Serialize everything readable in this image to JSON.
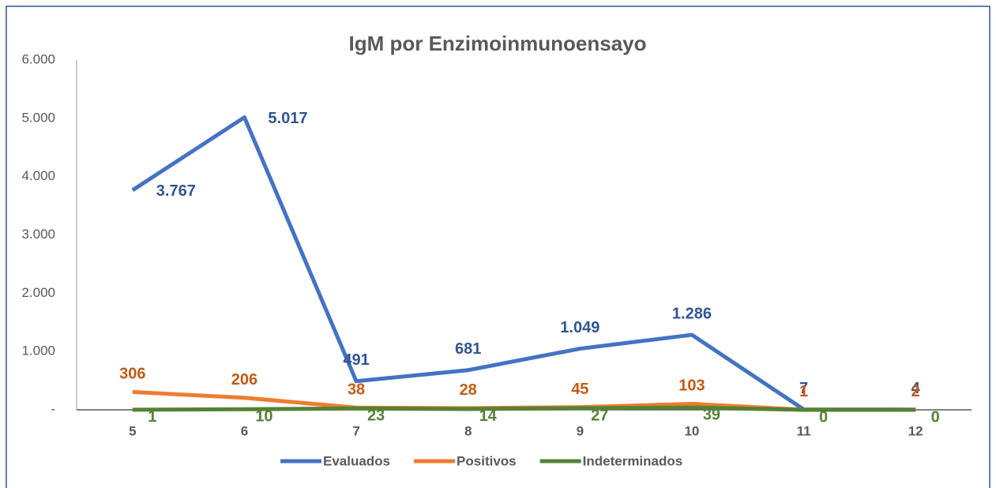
{
  "chart_data": {
    "type": "line",
    "title": "IgM por Enzimoinmunoensayo",
    "categories": [
      "5",
      "6",
      "7",
      "8",
      "9",
      "10",
      "11",
      "12"
    ],
    "series": [
      {
        "name": "Evaluados",
        "color": "#4472c4",
        "label_color": "#2f5597",
        "values": [
          3767,
          5017,
          491,
          681,
          1049,
          1286,
          7,
          4
        ],
        "value_labels": [
          "3.767",
          "5.017",
          "491",
          "681",
          "1.049",
          "1.286",
          "7",
          "4"
        ]
      },
      {
        "name": "Positivos",
        "color": "#ed7d31",
        "label_color": "#c55a11",
        "values": [
          306,
          206,
          38,
          28,
          45,
          103,
          1,
          2
        ],
        "value_labels": [
          "306",
          "206",
          "38",
          "28",
          "45",
          "103",
          "1",
          "2"
        ]
      },
      {
        "name": "Indeterminados",
        "color": "#548235",
        "label_color": "#548235",
        "values": [
          1,
          10,
          23,
          14,
          27,
          39,
          0,
          0
        ],
        "value_labels": [
          "1",
          "10",
          "23",
          "14",
          "27",
          "39",
          "0",
          "0"
        ]
      }
    ],
    "ylim": [
      0,
      6000
    ],
    "yticks": [
      {
        "value": 0,
        "label": "-"
      },
      {
        "value": 1000,
        "label": "1.000"
      },
      {
        "value": 2000,
        "label": "2.000"
      },
      {
        "value": 3000,
        "label": "3.000"
      },
      {
        "value": 4000,
        "label": "4.000"
      },
      {
        "value": 5000,
        "label": "5.000"
      },
      {
        "value": 6000,
        "label": "6.000"
      }
    ],
    "legend": "bottom"
  }
}
